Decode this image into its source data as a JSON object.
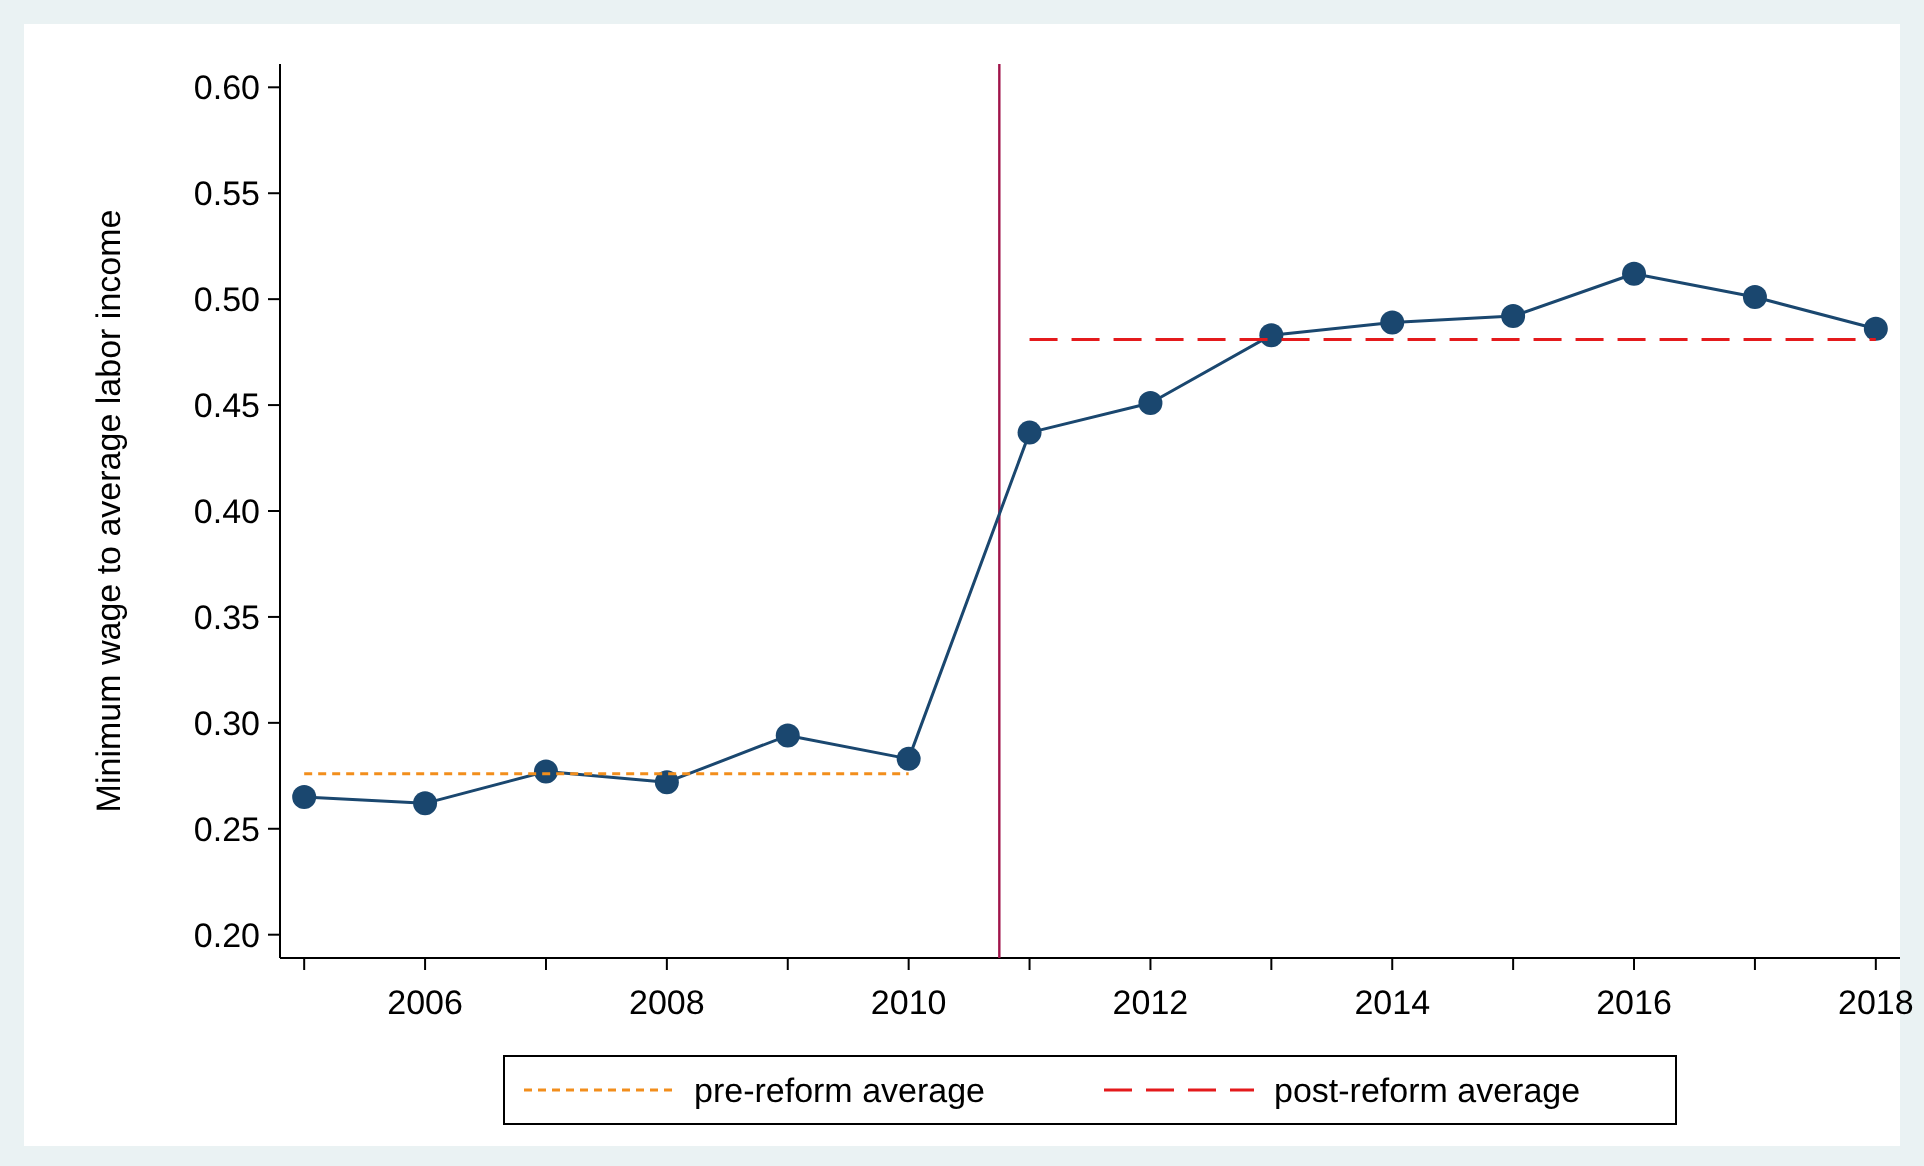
{
  "chart_data": {
    "type": "line",
    "ylabel": "Minimum wage to average labor income",
    "x": [
      2005,
      2006,
      2007,
      2008,
      2009,
      2010,
      2011,
      2012,
      2013,
      2014,
      2015,
      2016,
      2017,
      2018
    ],
    "series": [
      {
        "color": "#1a476f",
        "marker": "circle",
        "line_style": "solid",
        "values": [
          0.265,
          0.262,
          0.277,
          0.272,
          0.294,
          0.283,
          0.437,
          0.451,
          0.483,
          0.489,
          0.492,
          0.512,
          0.501,
          0.486
        ]
      },
      {
        "name": "pre-reform average",
        "color": "#f28e1c",
        "marker": "none",
        "line_style": "dotted",
        "x": [
          2005,
          2010
        ],
        "values": [
          0.276,
          0.276
        ]
      },
      {
        "name": "post-reform average",
        "color": "#e41a1c",
        "marker": "none",
        "line_style": "dashed",
        "x": [
          2011,
          2018
        ],
        "values": [
          0.481,
          0.481
        ]
      }
    ],
    "xlim": [
      2004.8,
      2018.2
    ],
    "xticks": [
      {
        "value": 2005,
        "label": null
      },
      2006,
      {
        "value": 2007,
        "label": null
      },
      2008,
      {
        "value": 2009,
        "label": null
      },
      2010,
      {
        "value": 2011,
        "label": null
      },
      2012,
      {
        "value": 2013,
        "label": null
      },
      2014,
      {
        "value": 2015,
        "label": null
      },
      2016,
      {
        "value": 2017,
        "label": null
      },
      2018
    ],
    "ylim": [
      0.189,
      0.611
    ],
    "yticks": [
      {
        "value": 0.2,
        "label": "0.20"
      },
      {
        "value": 0.25,
        "label": "0.25"
      },
      {
        "value": 0.3,
        "label": "0.30"
      },
      {
        "value": 0.35,
        "label": "0.35"
      },
      {
        "value": 0.4,
        "label": "0.40"
      },
      {
        "value": 0.45,
        "label": "0.45"
      },
      {
        "value": 0.5,
        "label": "0.50"
      },
      {
        "value": 0.55,
        "label": "0.55"
      },
      {
        "value": 0.6,
        "label": "0.60"
      }
    ],
    "ref_lines": [
      {
        "axis": "x",
        "value": 2010.75,
        "color": "#a0144a"
      }
    ],
    "grid": false,
    "legend": "bottom"
  }
}
